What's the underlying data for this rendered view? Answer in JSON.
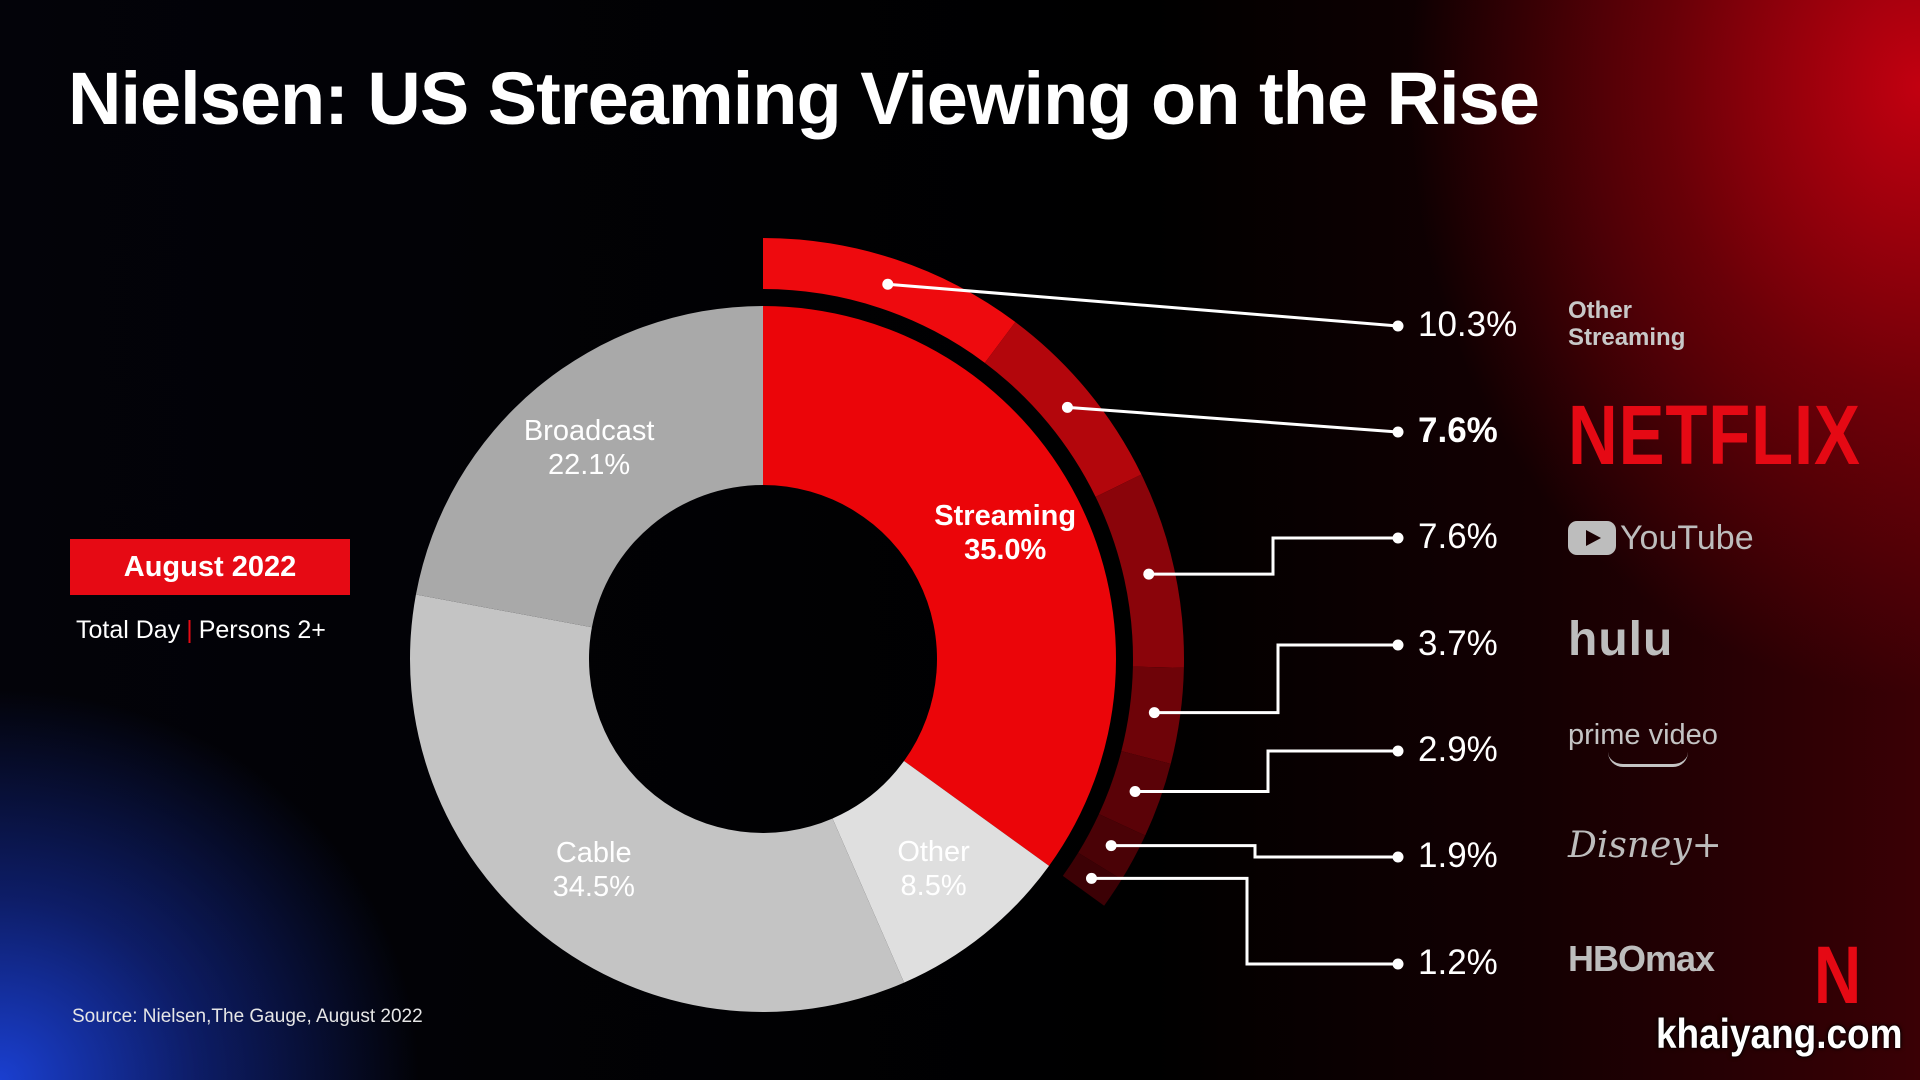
{
  "title": "Nielsen: US Streaming Viewing on the Rise",
  "badge": "August 2022",
  "subtitle": {
    "part1": "Total Day",
    "separator": "|",
    "part2": "Persons 2+"
  },
  "source": "Source: Nielsen,The Gauge, August 2022",
  "watermark": "khaiyang.com",
  "colors": {
    "streaming": "#eb0509",
    "broadcast": "#a9a9a9",
    "cable": "#c4c4c4",
    "other": "#dfdfdf",
    "accent": "#e60a14",
    "netflix": "#e50914"
  },
  "chart_data": {
    "type": "pie",
    "variant": "donut",
    "title": "Nielsen: US Streaming Viewing on the Rise",
    "categories": [
      "Streaming",
      "Other",
      "Cable",
      "Broadcast"
    ],
    "values": [
      35.0,
      8.5,
      34.5,
      22.1
    ],
    "value_labels": [
      "35.0%",
      "8.5%",
      "34.5%",
      "22.1%"
    ],
    "breakdown": {
      "parent": "Streaming",
      "categories": [
        "Other Streaming",
        "Netflix",
        "YouTube",
        "Hulu",
        "Prime Video",
        "Disney+",
        "HBO Max"
      ],
      "values": [
        10.3,
        7.6,
        7.6,
        3.7,
        2.9,
        1.9,
        1.2
      ],
      "value_labels": [
        "10.3%",
        "7.6%",
        "7.6%",
        "3.7%",
        "2.9%",
        "1.9%",
        "1.2%"
      ],
      "highlight": "Netflix"
    }
  },
  "logos": {
    "other_streaming": "Other Streaming",
    "netflix": "NETFLIX",
    "youtube": "YouTube",
    "hulu": "hulu",
    "prime": "prime video",
    "disney": "Disney+",
    "hbomax": "HBOmax",
    "netflix_n": "N"
  }
}
